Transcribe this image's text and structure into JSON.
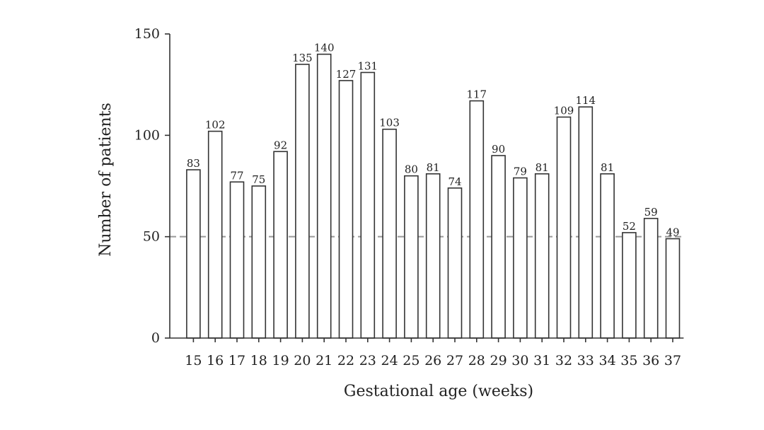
{
  "chart_data": {
    "type": "bar",
    "title": "",
    "xlabel": "Gestational age (weeks)",
    "ylabel": "Number of patients",
    "categories": [
      "15",
      "16",
      "17",
      "18",
      "19",
      "20",
      "21",
      "22",
      "23",
      "24",
      "25",
      "26",
      "27",
      "28",
      "29",
      "30",
      "31",
      "32",
      "33",
      "34",
      "35",
      "36",
      "37"
    ],
    "values": [
      83,
      102,
      77,
      75,
      92,
      135,
      140,
      127,
      131,
      103,
      80,
      81,
      74,
      117,
      90,
      79,
      81,
      109,
      114,
      81,
      52,
      59,
      49
    ],
    "ylim": [
      0,
      150
    ],
    "yticks": [
      0,
      50,
      100,
      150
    ],
    "reference_line": {
      "y": 50,
      "style": "dashed",
      "color": "#999999"
    },
    "bar_fill": "#ffffff",
    "bar_stroke": "#333333",
    "grid": false,
    "data_labels": true
  }
}
